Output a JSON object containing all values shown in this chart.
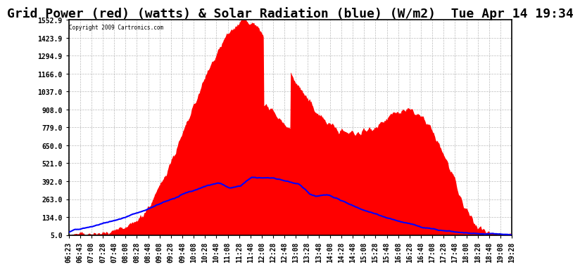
{
  "title": "Grid Power (red) (watts) & Solar Radiation (blue) (W/m2)  Tue Apr 14 19:34",
  "copyright_text": "Copyright 2009 Cartronics.com",
  "yticks": [
    5.0,
    134.0,
    263.0,
    392.0,
    521.0,
    650.0,
    779.0,
    908.0,
    1037.0,
    1166.0,
    1294.9,
    1423.9,
    1552.9
  ],
  "ymin": 5.0,
  "ymax": 1552.9,
  "bg_color": "#ffffff",
  "plot_bg_color": "#ffffff",
  "grid_color": "#aaaaaa",
  "red_color": "#ff0000",
  "blue_color": "#0000ff",
  "title_fontsize": 13,
  "axis_fontsize": 7,
  "xtick_labels": [
    "06:23",
    "06:43",
    "07:08",
    "07:28",
    "07:48",
    "08:08",
    "08:28",
    "08:48",
    "09:08",
    "09:28",
    "09:48",
    "10:08",
    "10:28",
    "10:48",
    "11:08",
    "11:28",
    "11:48",
    "12:08",
    "12:28",
    "12:48",
    "13:08",
    "13:28",
    "13:48",
    "14:08",
    "14:28",
    "14:48",
    "15:08",
    "15:28",
    "15:48",
    "16:08",
    "16:28",
    "16:48",
    "17:08",
    "17:28",
    "17:48",
    "18:08",
    "18:28",
    "18:48",
    "19:08",
    "19:28"
  ]
}
